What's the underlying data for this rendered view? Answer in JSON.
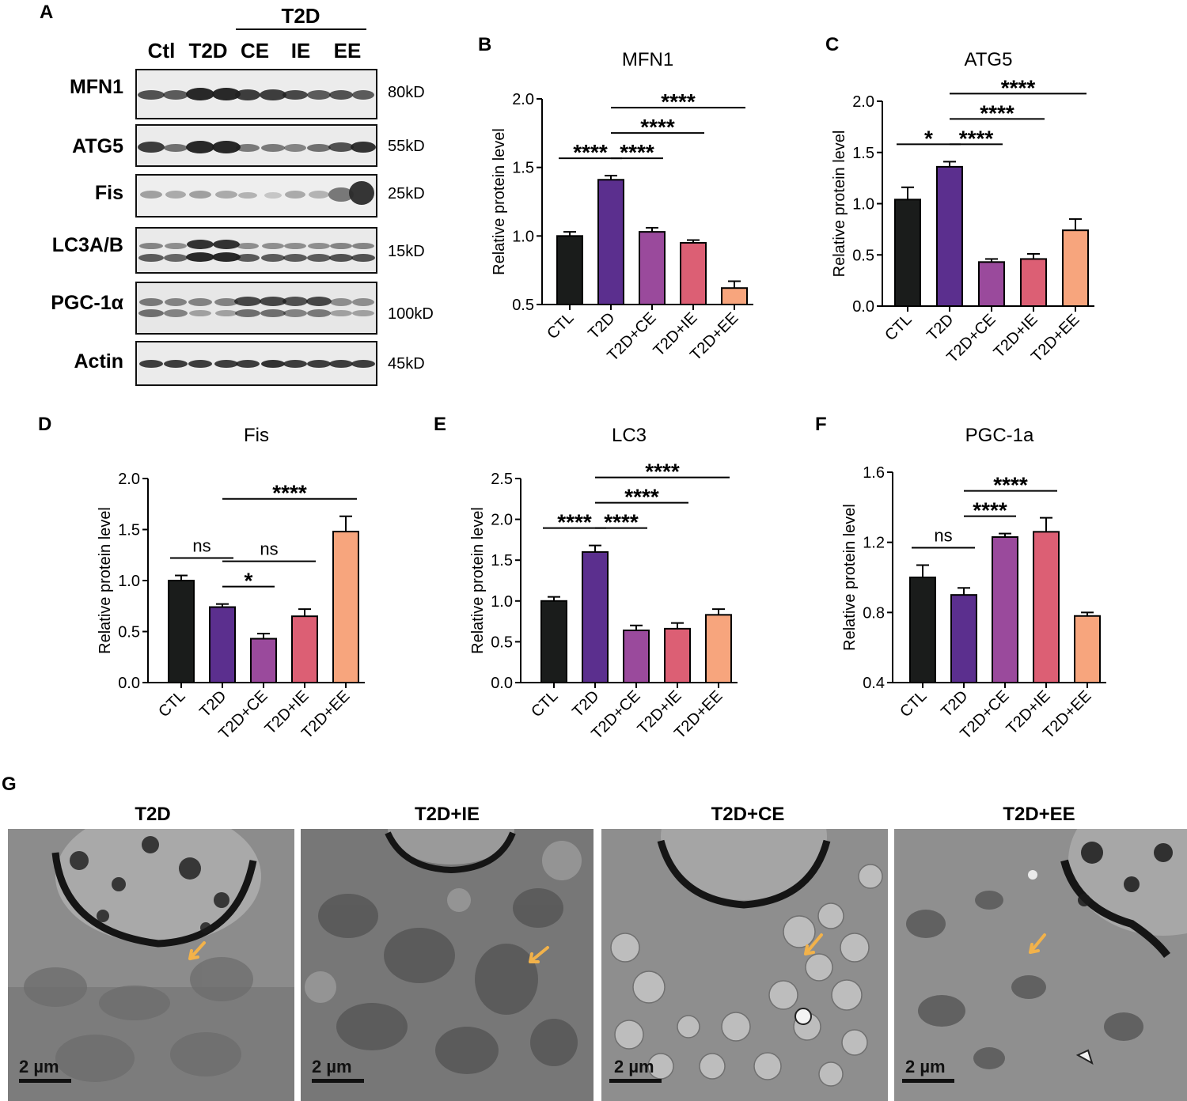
{
  "panel_letters": {
    "A": "A",
    "B": "B",
    "C": "C",
    "D": "D",
    "E": "E",
    "F": "F",
    "G": "G"
  },
  "western_blot": {
    "group_header": "T2D",
    "lanes": [
      "Ctl",
      "T2D",
      "CE",
      "IE",
      "EE"
    ],
    "rows": [
      {
        "protein": "MFN1",
        "mw": "80kD"
      },
      {
        "protein": "ATG5",
        "mw": "55kD"
      },
      {
        "protein": "Fis",
        "mw": "25kD"
      },
      {
        "protein": "LC3A/B",
        "mw": "15kD"
      },
      {
        "protein": "PGC-1α",
        "mw": "100kD"
      },
      {
        "protein": "Actin",
        "mw": "45kD"
      }
    ]
  },
  "colors": {
    "CTL": "#1a1c1b",
    "T2D": "#5b2f8e",
    "T2D+CE": "#9a4a9c",
    "T2D+IE": "#dc5f74",
    "T2D+EE": "#f7a57d",
    "arrow": "#f2b24a"
  },
  "chart_data": [
    {
      "id": "B",
      "type": "bar",
      "title": "MFN1",
      "ylabel": "Relative protein level",
      "categories": [
        "CTL",
        "T2D",
        "T2D+CE",
        "T2D+IE",
        "T2D+EE"
      ],
      "values": [
        1.0,
        1.41,
        1.03,
        0.95,
        0.62
      ],
      "errors": [
        0.03,
        0.03,
        0.03,
        0.02,
        0.05
      ],
      "ylim": [
        0.5,
        2.0
      ],
      "yticks": [
        "0.5",
        "1.0",
        "1.5",
        "2.0"
      ],
      "significance": [
        {
          "from": 0,
          "to": 1,
          "label": "****"
        },
        {
          "from": 1,
          "to": 2,
          "label": "****"
        },
        {
          "from": 1,
          "to": 3,
          "label": "****"
        },
        {
          "from": 1,
          "to": 4,
          "label": "****"
        }
      ]
    },
    {
      "id": "C",
      "type": "bar",
      "title": "ATG5",
      "ylabel": "Relative protein level",
      "categories": [
        "CTL",
        "T2D",
        "T2D+CE",
        "T2D+IE",
        "T2D+EE"
      ],
      "values": [
        1.04,
        1.36,
        0.43,
        0.46,
        0.74
      ],
      "errors": [
        0.12,
        0.05,
        0.03,
        0.05,
        0.11
      ],
      "ylim": [
        0.0,
        2.0
      ],
      "yticks": [
        "0.0",
        "0.5",
        "1.0",
        "1.5",
        "2.0"
      ],
      "significance": [
        {
          "from": 0,
          "to": 1,
          "label": "*"
        },
        {
          "from": 1,
          "to": 2,
          "label": "****"
        },
        {
          "from": 1,
          "to": 3,
          "label": "****"
        },
        {
          "from": 1,
          "to": 4,
          "label": "****"
        }
      ]
    },
    {
      "id": "D",
      "type": "bar",
      "title": "Fis",
      "ylabel": "Relative protein level",
      "categories": [
        "CTL",
        "T2D",
        "T2D+CE",
        "T2D+IE",
        "T2D+EE"
      ],
      "values": [
        1.0,
        0.74,
        0.43,
        0.65,
        1.48
      ],
      "errors": [
        0.05,
        0.03,
        0.05,
        0.07,
        0.15
      ],
      "ylim": [
        0.0,
        2.0
      ],
      "yticks": [
        "0.0",
        "0.5",
        "1.0",
        "1.5",
        "2.0"
      ],
      "significance": [
        {
          "from": 0,
          "to": 1,
          "label": "ns"
        },
        {
          "from": 1,
          "to": 2,
          "label": "*"
        },
        {
          "from": 1,
          "to": 3,
          "label": "ns"
        },
        {
          "from": 1,
          "to": 4,
          "label": "****"
        }
      ]
    },
    {
      "id": "E",
      "type": "bar",
      "title": "LC3",
      "ylabel": "Relative protein level",
      "categories": [
        "CTL",
        "T2D",
        "T2D+CE",
        "T2D+IE",
        "T2D+EE"
      ],
      "values": [
        1.0,
        1.6,
        0.64,
        0.66,
        0.83
      ],
      "errors": [
        0.05,
        0.08,
        0.06,
        0.07,
        0.07
      ],
      "ylim": [
        0.0,
        2.5
      ],
      "yticks": [
        "0.0",
        "0.5",
        "1.0",
        "1.5",
        "2.0",
        "2.5"
      ],
      "significance": [
        {
          "from": 0,
          "to": 1,
          "label": "****"
        },
        {
          "from": 1,
          "to": 2,
          "label": "****"
        },
        {
          "from": 1,
          "to": 3,
          "label": "****"
        },
        {
          "from": 1,
          "to": 4,
          "label": "****"
        }
      ]
    },
    {
      "id": "F",
      "type": "bar",
      "title": "PGC-1a",
      "ylabel": "Relative protein level",
      "categories": [
        "CTL",
        "T2D",
        "T2D+CE",
        "T2D+IE",
        "T2D+EE"
      ],
      "values": [
        1.0,
        0.9,
        1.23,
        1.26,
        0.78
      ],
      "errors": [
        0.07,
        0.04,
        0.02,
        0.08,
        0.02
      ],
      "ylim": [
        0.4,
        1.6
      ],
      "yticks": [
        "0.4",
        "0.8",
        "1.2",
        "1.6"
      ],
      "significance": [
        {
          "from": 0,
          "to": 1,
          "label": "ns"
        },
        {
          "from": 1,
          "to": 2,
          "label": "****"
        },
        {
          "from": 1,
          "to": 3,
          "label": "****"
        }
      ]
    }
  ],
  "em_panels": [
    {
      "title": "T2D",
      "scale": "2 µm"
    },
    {
      "title": "T2D+IE",
      "scale": "2 µm"
    },
    {
      "title": "T2D+CE",
      "scale": "2 µm"
    },
    {
      "title": "T2D+EE",
      "scale": "2 µm"
    }
  ]
}
